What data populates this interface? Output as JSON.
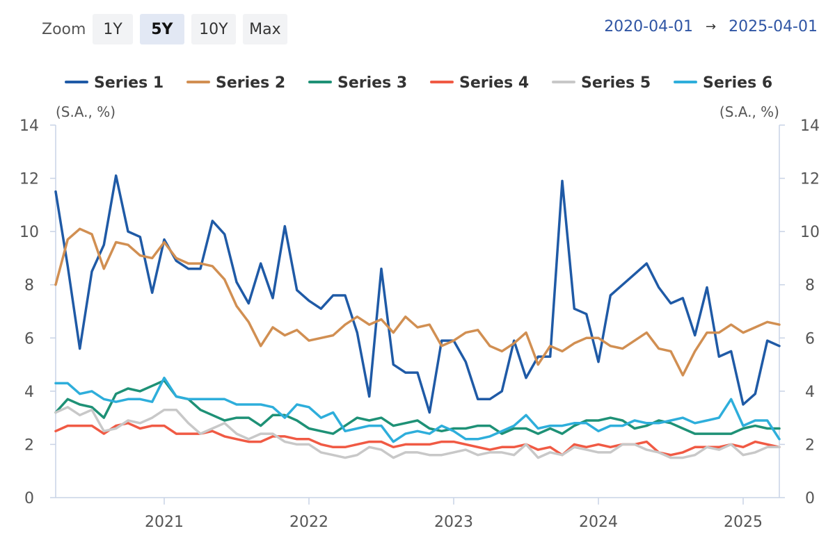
{
  "toolbar": {
    "zoom_label": "Zoom",
    "buttons": [
      {
        "label": "1Y",
        "active": false
      },
      {
        "label": "5Y",
        "active": true
      },
      {
        "label": "10Y",
        "active": false
      },
      {
        "label": "Max",
        "active": false
      }
    ]
  },
  "range": {
    "start": "2020-04-01",
    "arrow": "→",
    "end": "2025-04-01"
  },
  "chart_data": {
    "type": "line",
    "left_axis_unit": "(S.A., %)",
    "right_axis_unit": "(S.A., %)",
    "ylim": [
      0,
      14
    ],
    "y_ticks": [
      0,
      2,
      4,
      6,
      8,
      10,
      12,
      14
    ],
    "x_tick_labels": [
      "2021",
      "2022",
      "2023",
      "2024",
      "2025"
    ],
    "x_start": "2020-04",
    "legend_position": "top",
    "grid": false,
    "series": [
      {
        "name": "Series 1",
        "color": "#1f5aa6",
        "values": [
          11.5,
          8.7,
          5.6,
          8.5,
          9.5,
          12.1,
          10.0,
          9.8,
          7.7,
          9.7,
          8.9,
          8.6,
          8.6,
          10.4,
          9.9,
          8.1,
          7.3,
          8.8,
          7.5,
          10.2,
          7.8,
          7.4,
          7.1,
          7.6,
          7.6,
          6.2,
          3.8,
          8.6,
          5.0,
          4.7,
          4.7,
          3.2,
          5.9,
          5.9,
          5.1,
          3.7,
          3.7,
          4.0,
          5.9,
          4.5,
          5.3,
          5.3,
          11.9,
          7.1,
          6.9,
          5.1,
          7.6,
          8.0,
          8.4,
          8.8,
          7.9,
          7.3,
          7.5,
          6.1,
          7.9,
          5.3,
          5.5,
          3.5,
          3.9,
          5.9,
          5.7
        ]
      },
      {
        "name": "Series 2",
        "color": "#d18f52",
        "values": [
          8.0,
          9.7,
          10.1,
          9.9,
          8.6,
          9.6,
          9.5,
          9.1,
          9.0,
          9.6,
          9.0,
          8.8,
          8.8,
          8.7,
          8.2,
          7.2,
          6.6,
          5.7,
          6.4,
          6.1,
          6.3,
          5.9,
          6.0,
          6.1,
          6.5,
          6.8,
          6.5,
          6.7,
          6.2,
          6.8,
          6.4,
          6.5,
          5.7,
          5.9,
          6.2,
          6.3,
          5.7,
          5.5,
          5.8,
          6.2,
          5.0,
          5.7,
          5.5,
          5.8,
          6.0,
          6.0,
          5.7,
          5.6,
          5.9,
          6.2,
          5.6,
          5.5,
          4.6,
          5.5,
          6.2,
          6.2,
          6.5,
          6.2,
          6.4,
          6.6,
          6.5
        ]
      },
      {
        "name": "Series 3",
        "color": "#1e9176",
        "values": [
          3.2,
          3.7,
          3.5,
          3.4,
          3.0,
          3.9,
          4.1,
          4.0,
          4.2,
          4.4,
          3.8,
          3.7,
          3.3,
          3.1,
          2.9,
          3.0,
          3.0,
          2.7,
          3.1,
          3.1,
          2.9,
          2.6,
          2.5,
          2.4,
          2.7,
          3.0,
          2.9,
          3.0,
          2.7,
          2.8,
          2.9,
          2.6,
          2.5,
          2.6,
          2.6,
          2.7,
          2.7,
          2.4,
          2.6,
          2.6,
          2.4,
          2.6,
          2.4,
          2.7,
          2.9,
          2.9,
          3.0,
          2.9,
          2.6,
          2.7,
          2.9,
          2.8,
          2.6,
          2.4,
          2.4,
          2.4,
          2.4,
          2.6,
          2.7,
          2.6,
          2.6
        ]
      },
      {
        "name": "Series 4",
        "color": "#f05a44",
        "values": [
          2.5,
          2.7,
          2.7,
          2.7,
          2.4,
          2.7,
          2.8,
          2.6,
          2.7,
          2.7,
          2.4,
          2.4,
          2.4,
          2.5,
          2.3,
          2.2,
          2.1,
          2.1,
          2.3,
          2.3,
          2.2,
          2.2,
          2.0,
          1.9,
          1.9,
          2.0,
          2.1,
          2.1,
          1.9,
          2.0,
          2.0,
          2.0,
          2.1,
          2.1,
          2.0,
          1.9,
          1.8,
          1.9,
          1.9,
          2.0,
          1.8,
          1.9,
          1.6,
          2.0,
          1.9,
          2.0,
          1.9,
          2.0,
          2.0,
          2.1,
          1.7,
          1.6,
          1.7,
          1.9,
          1.9,
          1.9,
          2.0,
          1.9,
          2.1,
          2.0,
          1.9
        ]
      },
      {
        "name": "Series 5",
        "color": "#c8c8c8",
        "values": [
          3.2,
          3.4,
          3.1,
          3.3,
          2.5,
          2.6,
          2.9,
          2.8,
          3.0,
          3.3,
          3.3,
          2.8,
          2.4,
          2.6,
          2.8,
          2.4,
          2.2,
          2.4,
          2.4,
          2.1,
          2.0,
          2.0,
          1.7,
          1.6,
          1.5,
          1.6,
          1.9,
          1.8,
          1.5,
          1.7,
          1.7,
          1.6,
          1.6,
          1.7,
          1.8,
          1.6,
          1.7,
          1.7,
          1.6,
          2.0,
          1.5,
          1.7,
          1.6,
          1.9,
          1.8,
          1.7,
          1.7,
          2.0,
          2.0,
          1.8,
          1.7,
          1.5,
          1.5,
          1.6,
          1.9,
          1.8,
          2.0,
          1.6,
          1.7,
          1.9,
          1.9
        ]
      },
      {
        "name": "Series 6",
        "color": "#2eaedb",
        "values": [
          4.3,
          4.3,
          3.9,
          4.0,
          3.7,
          3.6,
          3.7,
          3.7,
          3.6,
          4.5,
          3.8,
          3.7,
          3.7,
          3.7,
          3.7,
          3.5,
          3.5,
          3.5,
          3.4,
          3.0,
          3.5,
          3.4,
          3.0,
          3.2,
          2.5,
          2.6,
          2.7,
          2.7,
          2.1,
          2.4,
          2.5,
          2.4,
          2.7,
          2.5,
          2.2,
          2.2,
          2.3,
          2.5,
          2.7,
          3.1,
          2.6,
          2.7,
          2.7,
          2.8,
          2.8,
          2.5,
          2.7,
          2.7,
          2.9,
          2.8,
          2.8,
          2.9,
          3.0,
          2.8,
          2.9,
          3.0,
          3.7,
          2.7,
          2.9,
          2.9,
          2.2
        ]
      }
    ]
  }
}
